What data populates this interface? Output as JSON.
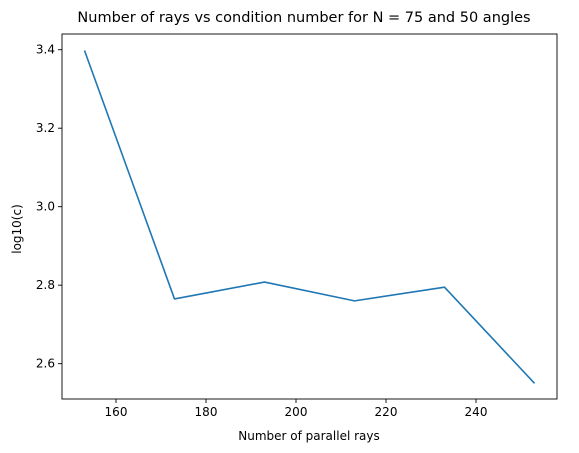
{
  "chart_data": {
    "type": "line",
    "title": "Number of rays vs condition number for N = 75 and 50 angles",
    "xlabel": "Number of parallel rays",
    "ylabel": "log10(c)",
    "xlim": [
      148,
      258
    ],
    "ylim": [
      2.51,
      3.44
    ],
    "xticks": [
      160,
      180,
      200,
      220,
      240
    ],
    "yticks": [
      2.6,
      2.8,
      3.0,
      3.2,
      3.4
    ],
    "xtick_labels": [
      "160",
      "180",
      "200",
      "220",
      "240"
    ],
    "ytick_labels": [
      "2.6",
      "2.8",
      "3.0",
      "3.2",
      "3.4"
    ],
    "grid": false,
    "series": [
      {
        "color": "#1f77b4",
        "x": [
          153,
          173,
          193,
          213,
          233,
          253
        ],
        "y": [
          3.398,
          2.765,
          2.808,
          2.76,
          2.795,
          2.55
        ]
      }
    ]
  }
}
